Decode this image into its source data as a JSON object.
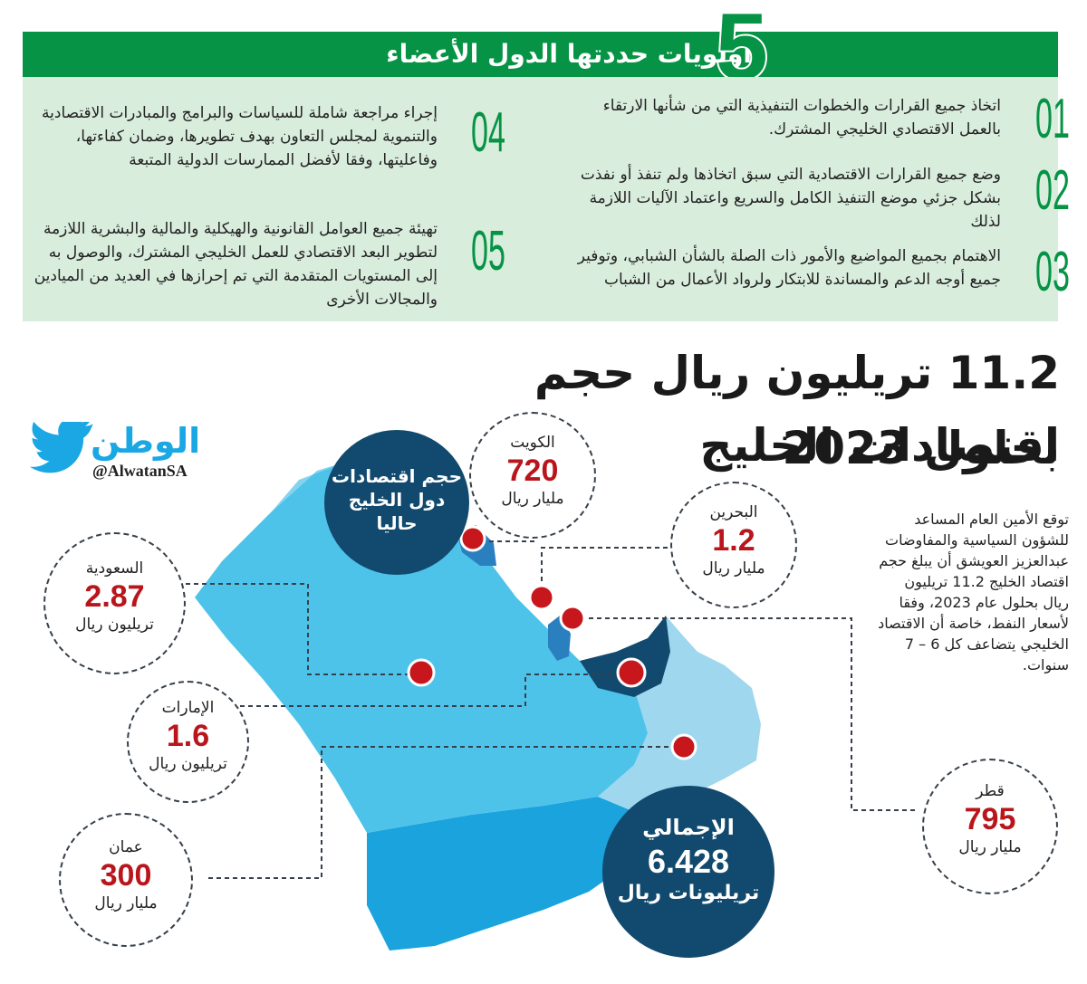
{
  "header": {
    "number": "5",
    "title": "أولويات حددتها الدول الأعضاء"
  },
  "priorities": [
    {
      "num": "01",
      "text": "اتخاذ جميع القرارات والخطوات التنفيذية التي من شأنها الارتقاء بالعمل الاقتصادي الخليجي المشترك."
    },
    {
      "num": "02",
      "text": "وضع جميع القرارات الاقتصادية التي سبق اتخاذها ولم تنفذ أو نفذت بشكل جزئي موضع التنفيذ الكامل والسريع واعتماد الآليات اللازمة لذلك"
    },
    {
      "num": "03",
      "text": "الاهتمام بجميع المواضيع والأمور ذات الصلة بالشأن الشبابي، وتوفير جميع أوجه الدعم والمساندة للابتكار ولرواد الأعمال من الشباب"
    },
    {
      "num": "04",
      "text": "إجراء مراجعة شاملة للسياسات والبرامج والمبادرات الاقتصادية والتنموية لمجلس التعاون بهدف تطويرها، وضمان كفاءتها، وفاعليتها، وفقا لأفضل الممارسات الدولية المتبعة"
    },
    {
      "num": "05",
      "text": "تهيئة جميع العوامل القانونية والهيكلية والمالية والبشرية اللازمة لتطوير البعد الاقتصادي للعمل الخليجي المشترك، والوصول به إلى المستويات المتقدمة التي تم إحرازها في العديد من الميادين والمجالات الأخرى"
    }
  ],
  "headline": {
    "line1": "11.2 تريليون ريال حجم اقتصادات الخليج",
    "line2": "بحلول 2023"
  },
  "paragraph": "توقع الأمين العام المساعد للشؤون السياسية والمفاوضات عبدالعزيز العويشق أن يبلغ حجم اقتصاد الخليج 11.2 تريليون ريال بحلول عام 2023، وفقا لأسعار النفط، خاصة أن الاقتصاد الخليجي يتضاعف كل 6 – 7 سنوات.",
  "logo": {
    "name": "الوطن",
    "handle": "@AlwatanSA"
  },
  "current_label": {
    "line1": "حجم اقتصادات",
    "line2": "دول الخليج",
    "line3": "حاليا"
  },
  "total": {
    "label": "الإجمالي",
    "value": "6.428",
    "unit": "تريليونات ريال"
  },
  "countries": [
    {
      "id": "kuwait",
      "name": "الكويت",
      "value": "720",
      "unit": "مليار ريال"
    },
    {
      "id": "bahrain",
      "name": "البحرين",
      "value": "1.2",
      "unit": "مليار ريال"
    },
    {
      "id": "saudi",
      "name": "السعودية",
      "value": "2.87",
      "unit": "تريليون ريال"
    },
    {
      "id": "uae",
      "name": "الإمارات",
      "value": "1.6",
      "unit": "تريليون ريال"
    },
    {
      "id": "oman",
      "name": "عمان",
      "value": "300",
      "unit": "مليار ريال"
    },
    {
      "id": "qatar",
      "name": "قطر",
      "value": "795",
      "unit": "مليار ريال"
    }
  ],
  "colors": {
    "green": "#069345",
    "panel": "#d9eddd",
    "dark_blue": "#114a6e",
    "red": "#b8161c",
    "saudi_light": "#4ec3ea",
    "oman_light": "#9fd7ef",
    "yemen": "#1aa3dd"
  }
}
